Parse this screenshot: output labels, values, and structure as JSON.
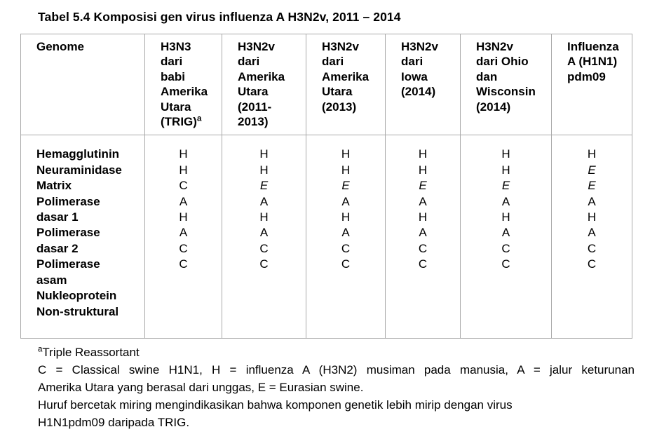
{
  "page": {
    "colors": {
      "background": "#ffffff",
      "text": "#000000",
      "table_border": "#a9a9a9"
    }
  },
  "title": "Tabel 5.4 Komposisi gen virus influenza A H3N2v, 2011 – 2014",
  "table": {
    "header": {
      "genome_label": "Genome",
      "columns": [
        {
          "id": "trig",
          "lines": [
            "H3N3",
            "dari",
            "babi",
            "Amerika",
            "Utara",
            "(TRIG)"
          ],
          "superscript": "a"
        },
        {
          "id": "na-2011-2013",
          "lines": [
            "H3N2v",
            "dari",
            "Amerika",
            "Utara",
            "(2011-",
            "2013)"
          ]
        },
        {
          "id": "na-2013",
          "lines": [
            "H3N2v",
            "dari",
            "Amerika",
            "Utara",
            "(2013)"
          ]
        },
        {
          "id": "iowa-2014",
          "lines": [
            "H3N2v",
            "dari",
            "Iowa",
            "(2014)"
          ]
        },
        {
          "id": "ohio-wisconsin-2014",
          "lines": [
            "H3N2v",
            "dari Ohio",
            "dan",
            "Wisconsin",
            "(2014)"
          ]
        },
        {
          "id": "pdm09",
          "lines": [
            "Influenza",
            "A (H1N1)",
            "pdm09"
          ]
        }
      ]
    },
    "body": {
      "gene_label_lines": [
        "Hemagglutinin",
        "Neuraminidase",
        "Matrix",
        "Polimerase",
        "dasar 1",
        "Polimerase",
        "dasar 2",
        "Polimerase",
        "asam",
        "Nukleoprotein",
        "Non-struktural"
      ],
      "columns": [
        {
          "id": "trig",
          "values": [
            "H",
            "H",
            "C",
            "A",
            "H",
            "A",
            "C",
            "C"
          ],
          "italics": [
            false,
            false,
            false,
            false,
            false,
            false,
            false,
            false
          ]
        },
        {
          "id": "na-2011-2013",
          "values": [
            "H",
            "H",
            "E",
            "A",
            "H",
            "A",
            "C",
            "C"
          ],
          "italics": [
            false,
            false,
            true,
            false,
            false,
            false,
            false,
            false
          ]
        },
        {
          "id": "na-2013",
          "values": [
            "H",
            "H",
            "E",
            "A",
            "H",
            "A",
            "C",
            "C"
          ],
          "italics": [
            false,
            false,
            true,
            false,
            false,
            false,
            false,
            false
          ]
        },
        {
          "id": "iowa-2014",
          "values": [
            "H",
            "H",
            "E",
            "A",
            "H",
            "A",
            "C",
            "C"
          ],
          "italics": [
            false,
            false,
            true,
            false,
            false,
            false,
            false,
            false
          ]
        },
        {
          "id": "ohio-wisconsin-2014",
          "values": [
            "H",
            "H",
            "E",
            "A",
            "H",
            "A",
            "C",
            "C"
          ],
          "italics": [
            false,
            false,
            true,
            false,
            false,
            false,
            false,
            false
          ]
        },
        {
          "id": "pdm09",
          "values": [
            "H",
            "E",
            "E",
            "A",
            "H",
            "A",
            "C",
            "C"
          ],
          "italics": [
            false,
            true,
            true,
            false,
            false,
            false,
            false,
            false
          ]
        }
      ]
    }
  },
  "footnotes": {
    "superscript": "a",
    "line1": "Triple Reassortant",
    "line2": "C = Classical swine H1N1, H = influenza A (H3N2) musiman pada manusia, A = jalur keturunan",
    "line3": "Amerika Utara yang berasal dari unggas, E = Eurasian swine.",
    "line4": "Huruf bercetak miring mengindikasikan bahwa komponen genetik lebih mirip dengan virus",
    "line5": "H1N1pdm09 daripada TRIG."
  }
}
